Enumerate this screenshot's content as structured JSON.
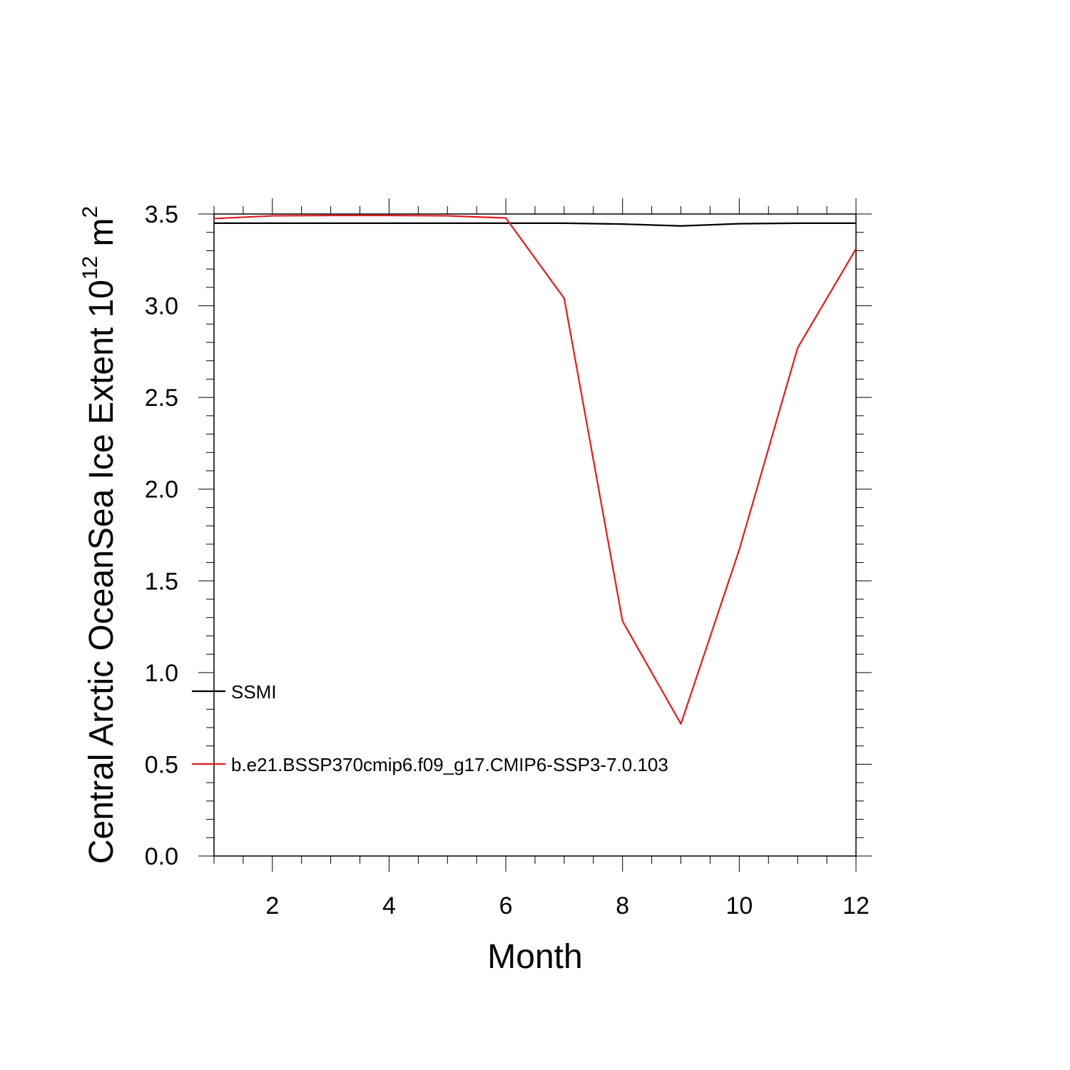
{
  "chart_data": {
    "type": "line",
    "xlabel": "Month",
    "ylabel_main": "Central Arctic OceanSea Ice Extent 10",
    "ylabel_sup": "12",
    "ylabel_unit": " m",
    "ylabel_unit_sup": "2",
    "xlim": [
      1,
      12
    ],
    "ylim": [
      0,
      3.5
    ],
    "xticks": [
      2,
      4,
      6,
      8,
      10,
      12
    ],
    "yticks": [
      0.0,
      0.5,
      1.0,
      1.5,
      2.0,
      2.5,
      3.0,
      3.5
    ],
    "ytick_labels": [
      "0.0",
      "0.5",
      "1.0",
      "1.5",
      "2.0",
      "2.5",
      "3.0",
      "3.5"
    ],
    "x": [
      1,
      2,
      3,
      4,
      5,
      6,
      7,
      8,
      9,
      10,
      11,
      12
    ],
    "series": [
      {
        "name": "SSMI",
        "color": "#000000",
        "values": [
          3.45,
          3.45,
          3.45,
          3.45,
          3.45,
          3.45,
          3.45,
          3.445,
          3.435,
          3.447,
          3.45,
          3.45
        ]
      },
      {
        "name": "b.e21.BSSP370cmip6.f09_g17.CMIP6-SSP3-7.0.103",
        "color": "#e31a1c",
        "values": [
          3.475,
          3.49,
          3.492,
          3.492,
          3.49,
          3.478,
          3.04,
          1.28,
          0.72,
          1.67,
          2.77,
          3.31
        ]
      }
    ],
    "legend": "inside bottom-left",
    "grid": false
  }
}
